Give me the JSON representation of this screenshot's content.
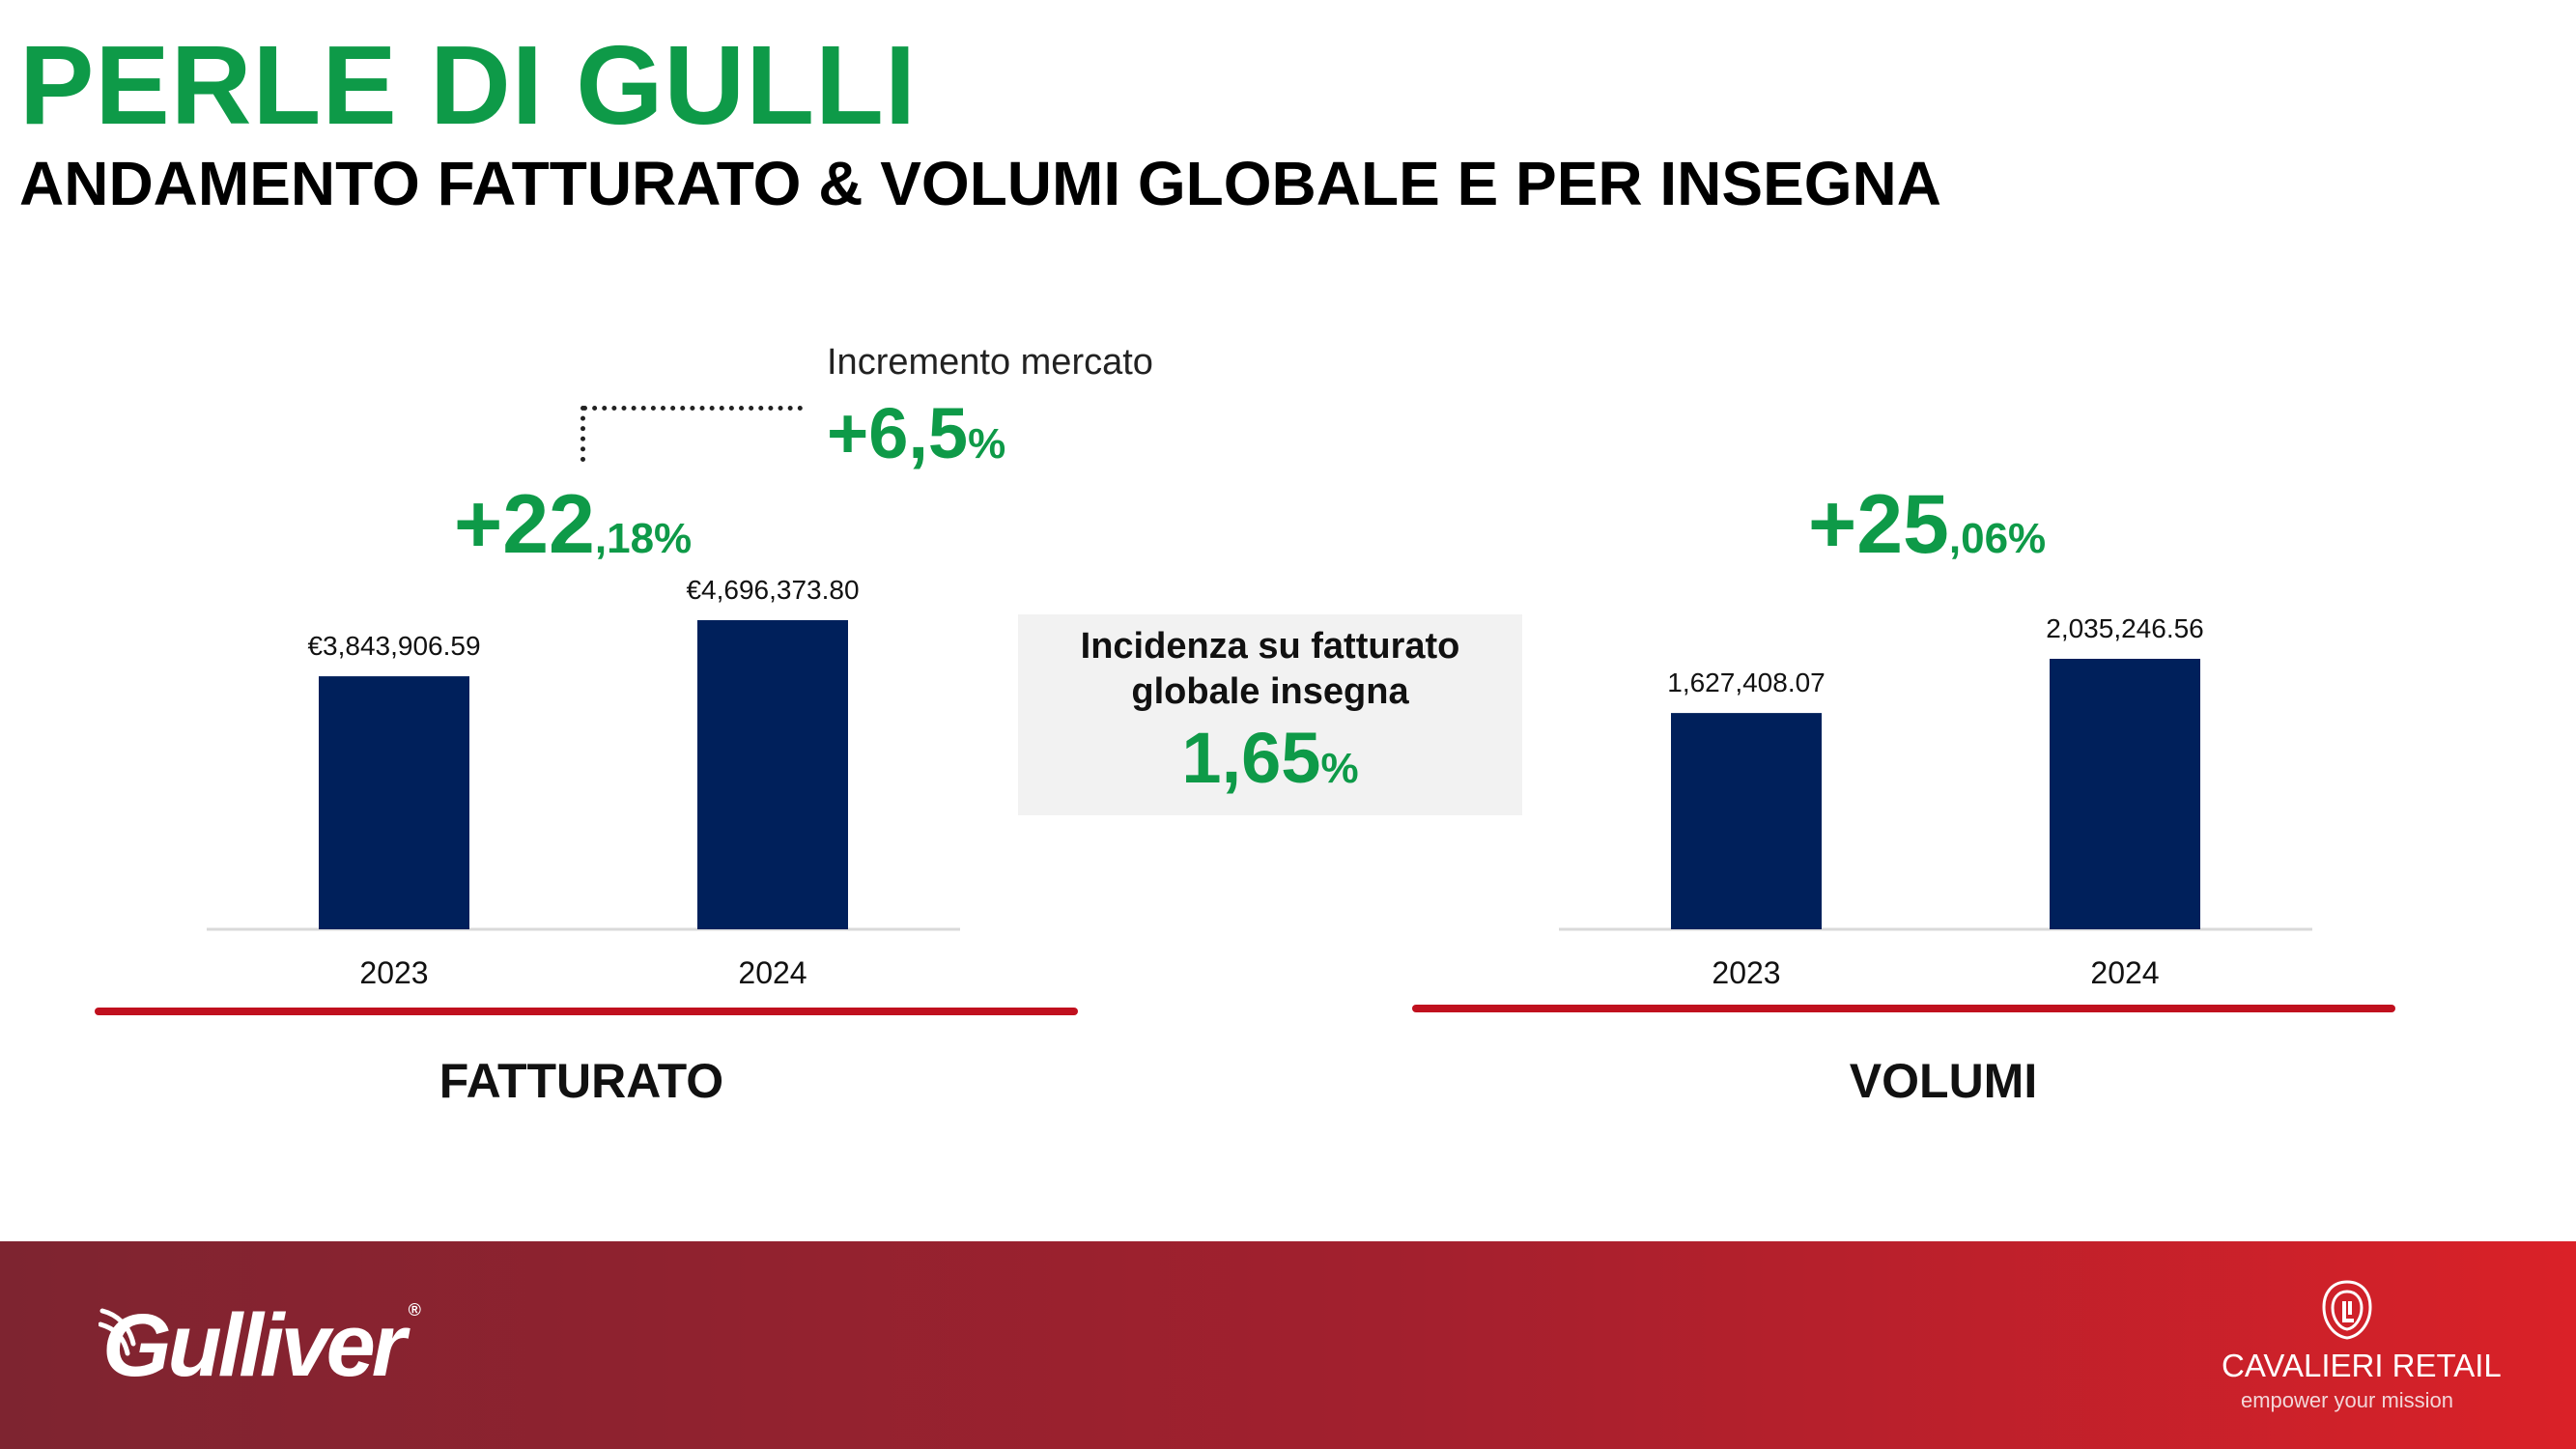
{
  "header": {
    "title": "PERLE DI GULLI",
    "subtitle": "ANDAMENTO FATTURATO & VOLUMI GLOBALE E PER INSEGNA"
  },
  "market": {
    "label": "Incremento mercato",
    "value_int": "+6,5",
    "value_dec": "%"
  },
  "fatturato": {
    "growth_int": "+22",
    "growth_dec": ",18%",
    "section_label": "FATTURATO"
  },
  "volumi": {
    "growth_int": "+25",
    "growth_dec": ",06%",
    "section_label": "VOLUMI"
  },
  "incidence": {
    "label": "Incidenza su fatturato globale insegna",
    "value_int": "1,65",
    "value_dec": "%"
  },
  "chart_data": [
    {
      "type": "bar",
      "categories": [
        "2023",
        "2024"
      ],
      "values": [
        3843906.59,
        4696373.8
      ],
      "value_labels": [
        "€3,843,906.59",
        "€4,696,373.80"
      ],
      "color": "#00205B",
      "ylim": [
        0,
        5000000
      ]
    },
    {
      "type": "bar",
      "categories": [
        "2023",
        "2024"
      ],
      "values": [
        1627408.07,
        2035246.56
      ],
      "value_labels": [
        "1,627,408.07",
        "2,035,246.56"
      ],
      "color": "#00205B",
      "ylim": [
        0,
        3000000
      ]
    }
  ],
  "footer": {
    "brand_left": "Gulliver",
    "brand_left_mark": "®",
    "brand_right": "CAVALIERI RETAIL",
    "tagline": "empower your mission",
    "colors": {
      "start": "#7E2430",
      "end": "#DA2128"
    }
  }
}
